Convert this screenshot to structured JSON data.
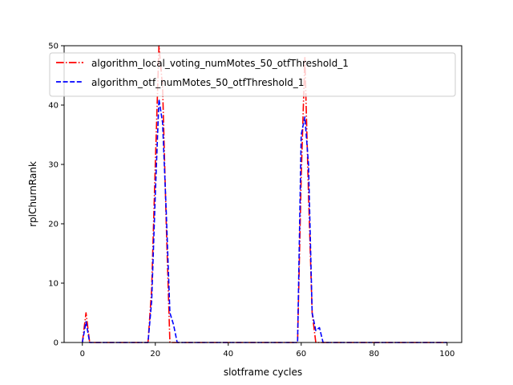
{
  "chart_data": {
    "type": "line",
    "xlabel": "slotframe cycles",
    "ylabel": "rplChurnRank",
    "xlim": [
      -5,
      104
    ],
    "ylim": [
      0,
      50
    ],
    "xticks": [
      0,
      20,
      40,
      60,
      80,
      100
    ],
    "yticks": [
      0,
      10,
      20,
      30,
      40,
      50
    ],
    "grid": false,
    "legend_position": "top",
    "series": [
      {
        "name": "algorithm_local_voting_numMotes_50_otfThreshold_1",
        "color": "#ff0000",
        "linestyle": "dashdot",
        "x": [
          0,
          1,
          2,
          3,
          4,
          5,
          6,
          7,
          8,
          9,
          10,
          11,
          12,
          13,
          14,
          15,
          16,
          17,
          18,
          19,
          20,
          21,
          22,
          23,
          24,
          25,
          26,
          27,
          28,
          29,
          30,
          31,
          32,
          33,
          34,
          35,
          36,
          37,
          38,
          39,
          40,
          41,
          42,
          43,
          44,
          45,
          46,
          47,
          48,
          49,
          50,
          51,
          52,
          53,
          54,
          55,
          56,
          57,
          58,
          59,
          60,
          61,
          62,
          63,
          64,
          65,
          66,
          67,
          68,
          69,
          70,
          71,
          72,
          73,
          74,
          75,
          76,
          77,
          78,
          79,
          80,
          81,
          82,
          83,
          84,
          85,
          86,
          87,
          88,
          89,
          90,
          91,
          92,
          93,
          94,
          95,
          96,
          97,
          98,
          99,
          100
        ],
        "y": [
          0,
          5,
          0,
          0,
          0,
          0,
          0,
          0,
          0,
          0,
          0,
          0,
          0,
          0,
          0,
          0,
          0,
          0,
          0,
          9,
          30,
          50,
          43,
          20,
          0,
          0,
          0,
          0,
          0,
          0,
          0,
          0,
          0,
          0,
          0,
          0,
          0,
          0,
          0,
          0,
          0,
          0,
          0,
          0,
          0,
          0,
          0,
          0,
          0,
          0,
          0,
          0,
          0,
          0,
          0,
          0,
          0,
          0,
          0,
          0,
          28,
          48,
          25,
          5,
          0,
          0,
          0,
          0,
          0,
          0,
          0,
          0,
          0,
          0,
          0,
          0,
          0,
          0,
          0,
          0,
          0,
          0,
          0,
          0,
          0,
          0,
          0,
          0,
          0,
          0,
          0,
          0,
          0,
          0,
          0,
          0,
          0,
          0,
          0,
          0,
          0
        ]
      },
      {
        "name": "algorithm_otf_numMotes_50_otfThreshold_1",
        "color": "#0000ff",
        "linestyle": "dashed",
        "x": [
          0,
          1,
          2,
          3,
          4,
          5,
          6,
          7,
          8,
          9,
          10,
          11,
          12,
          13,
          14,
          15,
          16,
          17,
          18,
          19,
          20,
          21,
          22,
          23,
          24,
          25,
          26,
          27,
          28,
          29,
          30,
          31,
          32,
          33,
          34,
          35,
          36,
          37,
          38,
          39,
          40,
          41,
          42,
          43,
          44,
          45,
          46,
          47,
          48,
          49,
          50,
          51,
          52,
          53,
          54,
          55,
          56,
          57,
          58,
          59,
          60,
          61,
          62,
          63,
          64,
          65,
          66,
          67,
          68,
          69,
          70,
          71,
          72,
          73,
          74,
          75,
          76,
          77,
          78,
          79,
          80,
          81,
          82,
          83,
          84,
          85,
          86,
          87,
          88,
          89,
          90,
          91,
          92,
          93,
          94,
          95,
          96,
          97,
          98,
          99,
          100
        ],
        "y": [
          0,
          3.5,
          0,
          0,
          0,
          0,
          0,
          0,
          0,
          0,
          0,
          0,
          0,
          0,
          0,
          0,
          0,
          0,
          0,
          7,
          25,
          41,
          37,
          22,
          5,
          3,
          0,
          0,
          0,
          0,
          0,
          0,
          0,
          0,
          0,
          0,
          0,
          0,
          0,
          0,
          0,
          0,
          0,
          0,
          0,
          0,
          0,
          0,
          0,
          0,
          0,
          0,
          0,
          0,
          0,
          0,
          0,
          0,
          0,
          0,
          35,
          38,
          30,
          5,
          2,
          2.5,
          0,
          0,
          0,
          0,
          0,
          0,
          0,
          0,
          0,
          0,
          0,
          0,
          0,
          0,
          0,
          0,
          0,
          0,
          0,
          0,
          0,
          0,
          0,
          0,
          0,
          0,
          0,
          0,
          0,
          0,
          0,
          0,
          0,
          0,
          0
        ]
      }
    ]
  }
}
